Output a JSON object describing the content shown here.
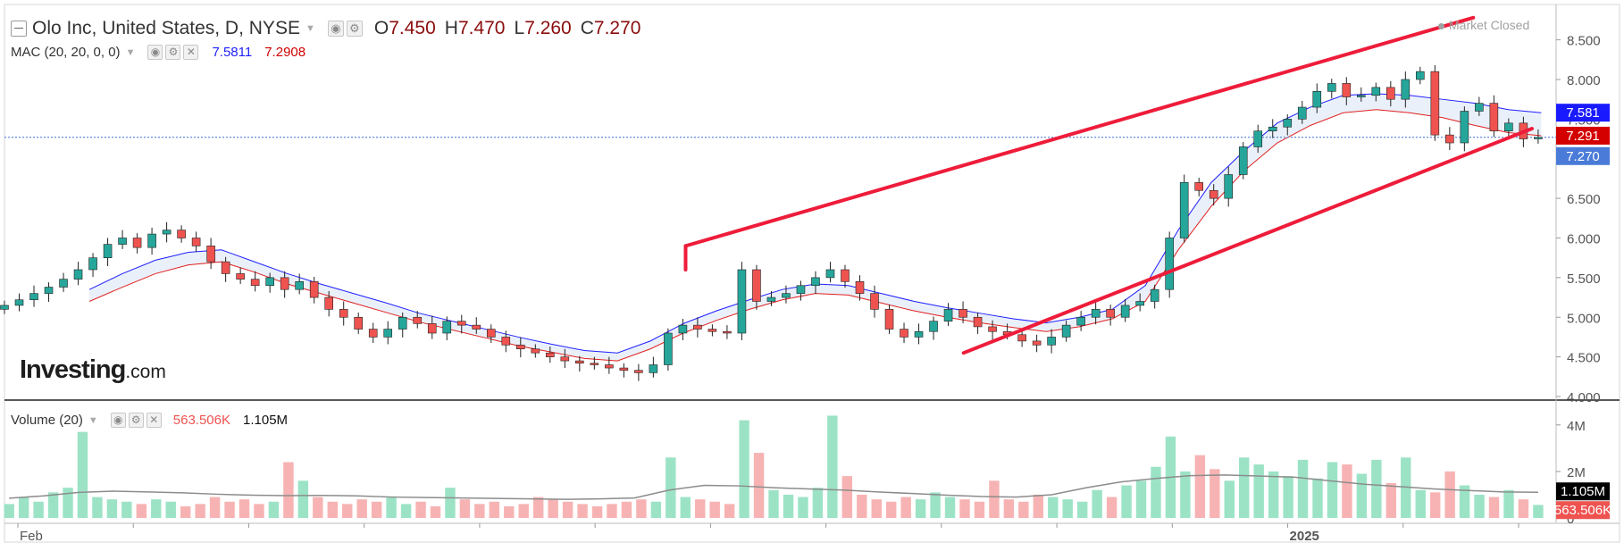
{
  "header": {
    "title": "Olo Inc, United States, D, NYSE",
    "ohlc": [
      {
        "key": "O",
        "value": "7.450"
      },
      {
        "key": "H",
        "value": "7.470"
      },
      {
        "key": "L",
        "value": "7.260"
      },
      {
        "key": "C",
        "value": "7.270"
      }
    ],
    "market_status": "Market Closed"
  },
  "indicators": {
    "mac": {
      "label": "MAC (20, 20, 0, 0)",
      "upper": "7.5811",
      "lower": "7.2908"
    },
    "volume": {
      "label": "Volume (20)",
      "value": "563.506K",
      "average": "1.105M"
    }
  },
  "logo": {
    "brand": "Investing",
    "suffix": ".com"
  },
  "colors": {
    "up_candle": "#26a69a",
    "down_candle": "#ef5350",
    "price_line": "#4a7bd8",
    "mac_upper": "#1f1fff",
    "mac_lower": "#e02020",
    "channel": "#ee1c3a",
    "volume_up": "#9ce3c6",
    "volume_down": "#f7b3b3"
  },
  "chart_data": [
    {
      "type": "candlestick",
      "title": "Olo Inc, United States, D, NYSE",
      "ylim": [
        4.0,
        8.8
      ],
      "y_ticks": [
        "4.000",
        "4.500",
        "5.000",
        "5.500",
        "6.000",
        "6.500",
        "7.000",
        "7.500",
        "8.000",
        "8.500"
      ],
      "x_ticks": [
        "Feb",
        "",
        "",
        "",
        "",
        "",
        "",
        "",
        "",
        "",
        "",
        "2025",
        "",
        ""
      ],
      "price_labels": {
        "upper_band": "7.581",
        "lower_band": "7.291",
        "last": "7.270"
      },
      "series_close": [
        5.15,
        5.22,
        5.3,
        5.38,
        5.48,
        5.6,
        5.75,
        5.92,
        6.0,
        5.88,
        6.05,
        6.1,
        6.0,
        5.9,
        5.7,
        5.55,
        5.48,
        5.4,
        5.5,
        5.35,
        5.45,
        5.25,
        5.1,
        5.0,
        4.85,
        4.75,
        4.85,
        5.0,
        4.92,
        4.8,
        4.95,
        4.9,
        4.85,
        4.75,
        4.65,
        4.6,
        4.55,
        4.5,
        4.45,
        4.42,
        4.4,
        4.36,
        4.33,
        4.3,
        4.4,
        4.8,
        4.9,
        4.85,
        4.82,
        4.8,
        5.6,
        5.2,
        5.25,
        5.3,
        5.4,
        5.5,
        5.6,
        5.45,
        5.3,
        5.1,
        4.85,
        4.75,
        4.82,
        4.95,
        5.1,
        5.0,
        4.88,
        4.82,
        4.78,
        4.7,
        4.65,
        4.75,
        4.9,
        5.0,
        5.1,
        5.0,
        5.15,
        5.2,
        5.35,
        6.0,
        6.7,
        6.6,
        6.5,
        6.8,
        7.15,
        7.35,
        7.4,
        7.5,
        7.65,
        7.85,
        7.95,
        7.78,
        7.8,
        7.9,
        7.75,
        8.0,
        8.1,
        7.3,
        7.2,
        7.6,
        7.7,
        7.35,
        7.45,
        7.25,
        7.27
      ],
      "series_names": {
        "mac_upper": "MAC upper (20)",
        "mac_lower": "MAC lower (20)"
      },
      "mac_upper": [
        5.35,
        5.55,
        5.72,
        5.82,
        5.85,
        5.7,
        5.55,
        5.42,
        5.3,
        5.18,
        5.05,
        4.95,
        4.85,
        4.75,
        4.66,
        4.58,
        4.55,
        4.7,
        4.92,
        5.08,
        5.22,
        5.35,
        5.42,
        5.4,
        5.3,
        5.2,
        5.12,
        5.05,
        4.98,
        4.93,
        5.0,
        5.1,
        5.4,
        6.1,
        6.7,
        7.1,
        7.45,
        7.65,
        7.8,
        7.82,
        7.8,
        7.75,
        7.7,
        7.62,
        7.58
      ],
      "mac_lower": [
        5.2,
        5.38,
        5.55,
        5.66,
        5.7,
        5.57,
        5.42,
        5.3,
        5.18,
        5.06,
        4.94,
        4.84,
        4.74,
        4.64,
        4.56,
        4.48,
        4.45,
        4.6,
        4.8,
        4.96,
        5.1,
        5.22,
        5.3,
        5.28,
        5.18,
        5.08,
        5.0,
        4.93,
        4.87,
        4.82,
        4.88,
        4.98,
        5.2,
        5.85,
        6.4,
        6.85,
        7.2,
        7.42,
        7.58,
        7.62,
        7.58,
        7.52,
        7.42,
        7.33,
        7.29
      ],
      "annotations": {
        "channel_upper": [
          [
            0.441,
            5.9
          ],
          [
            0.951,
            8.78
          ]
        ],
        "channel_lower": [
          [
            0.621,
            4.55
          ],
          [
            0.989,
            7.38
          ]
        ],
        "channel_start_tick": [
          [
            0.441,
            5.9
          ],
          [
            0.441,
            5.6
          ]
        ]
      }
    },
    {
      "type": "bar",
      "title": "Volume (20)",
      "ylim": [
        0,
        4.8
      ],
      "y_ticks": [
        "0",
        "2M",
        "4M"
      ],
      "price_labels": {
        "average": "1.105M",
        "last": "563.506K"
      },
      "values_millions": [
        0.6,
        0.9,
        0.7,
        1.1,
        1.3,
        3.7,
        0.9,
        0.8,
        0.7,
        0.6,
        0.8,
        0.7,
        0.5,
        0.6,
        0.9,
        0.7,
        0.8,
        0.6,
        0.7,
        2.4,
        1.6,
        0.9,
        0.7,
        0.6,
        0.8,
        0.7,
        0.9,
        0.6,
        0.7,
        0.5,
        1.3,
        0.8,
        0.6,
        0.7,
        0.5,
        0.6,
        0.9,
        0.8,
        0.7,
        0.6,
        0.5,
        0.6,
        0.7,
        0.8,
        0.7,
        2.6,
        0.9,
        0.8,
        0.7,
        0.6,
        4.2,
        2.8,
        1.2,
        1.0,
        0.9,
        1.3,
        4.4,
        1.8,
        1.0,
        0.8,
        0.7,
        0.9,
        0.8,
        1.1,
        0.9,
        0.8,
        0.7,
        1.6,
        0.8,
        0.7,
        1.0,
        0.9,
        0.8,
        0.7,
        1.2,
        0.9,
        1.4,
        1.6,
        2.2,
        3.5,
        2.0,
        2.7,
        2.1,
        1.6,
        2.6,
        2.3,
        2.0,
        1.8,
        2.5,
        1.7,
        2.4,
        2.3,
        1.9,
        2.5,
        1.5,
        2.6,
        1.2,
        1.1,
        2.0,
        1.4,
        1.0,
        0.9,
        1.2,
        0.8,
        0.56
      ],
      "average_millions": [
        0.85,
        0.95,
        1.1,
        1.15,
        1.12,
        1.08,
        1.02,
        0.98,
        0.96,
        0.97,
        0.95,
        0.9,
        0.88,
        0.86,
        0.84,
        0.82,
        0.8,
        0.82,
        0.86,
        1.2,
        1.4,
        1.38,
        1.3,
        1.25,
        1.2,
        1.12,
        1.05,
        0.98,
        0.92,
        0.9,
        1.0,
        1.3,
        1.55,
        1.7,
        1.82,
        1.85,
        1.8,
        1.75,
        1.6,
        1.45,
        1.35,
        1.25,
        1.18,
        1.12,
        1.105
      ]
    }
  ]
}
